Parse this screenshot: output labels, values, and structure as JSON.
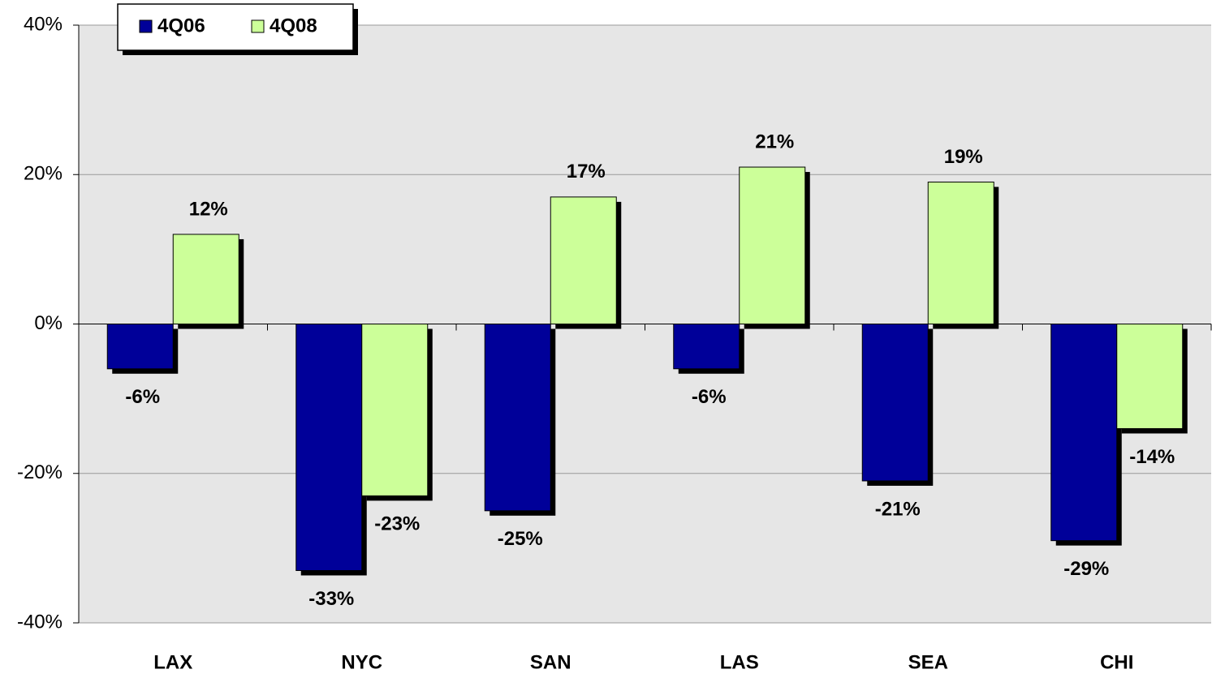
{
  "chart_data": {
    "type": "bar",
    "categories": [
      "LAX",
      "NYC",
      "SAN",
      "LAS",
      "SEA",
      "CHI"
    ],
    "series": [
      {
        "name": "4Q06",
        "color": "#000099",
        "values": [
          -6,
          -33,
          -25,
          -6,
          -21,
          -29
        ],
        "value_labels": [
          "-6%",
          "-33%",
          "-25%",
          "-6%",
          "-21%",
          "-29%"
        ]
      },
      {
        "name": "4Q08",
        "color": "#ccff99",
        "values": [
          12,
          -23,
          17,
          21,
          19,
          -14
        ],
        "value_labels": [
          "12%",
          "-23%",
          "17%",
          "21%",
          "19%",
          "-14%"
        ]
      }
    ],
    "ylim": [
      -40,
      40
    ],
    "yticks": [
      {
        "value": -40,
        "label": "-40%"
      },
      {
        "value": -20,
        "label": "-20%"
      },
      {
        "value": 0,
        "label": "0%"
      },
      {
        "value": 20,
        "label": "20%"
      },
      {
        "value": 40,
        "label": "40%"
      }
    ],
    "grid": true,
    "legend": "top-left"
  }
}
